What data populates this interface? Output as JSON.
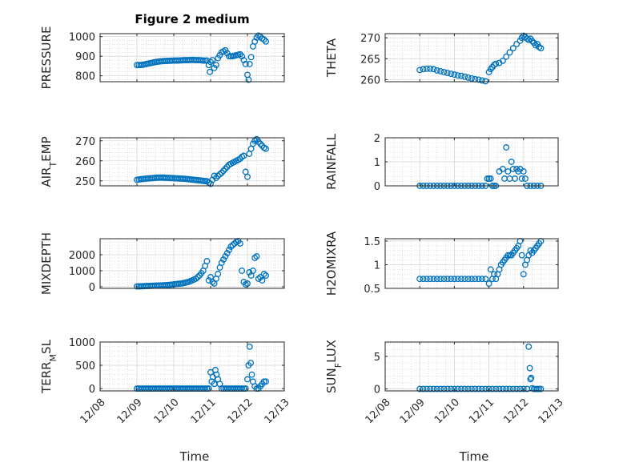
{
  "figure": {
    "title": "Figure 2 medium"
  },
  "colors": {
    "marker": "#0072bd",
    "axis": "#262626",
    "grid": "#d9d9d9",
    "grid_minor": "#c8c8c8"
  },
  "chart_data": [
    {
      "type": "scatter",
      "ylabel": "PRESSURE",
      "xlabel": "",
      "ylim": [
        770,
        1015
      ],
      "yticks": [
        "800",
        "900",
        "1000"
      ],
      "ytick_values": [
        800,
        900,
        1000
      ],
      "xlim": [
        0,
        5
      ],
      "grid": true,
      "marker": "circle",
      "x": [
        1.0,
        1.1,
        1.2,
        1.3,
        1.4,
        1.5,
        1.6,
        1.7,
        1.8,
        1.9,
        2.0,
        2.1,
        2.2,
        2.3,
        2.4,
        2.5,
        2.6,
        2.7,
        2.8,
        2.9,
        2.95,
        2.98,
        3.0,
        3.05,
        3.1,
        3.15,
        3.2,
        3.3,
        3.4,
        3.5,
        3.6,
        3.7,
        3.8,
        3.85,
        3.9,
        3.95,
        4.0,
        4.03,
        4.06,
        4.1,
        4.15,
        4.2,
        4.25,
        4.3,
        4.35,
        4.4,
        4.45,
        4.5
      ],
      "y": [
        855,
        855,
        858,
        862,
        866,
        870,
        873,
        875,
        876,
        877,
        878,
        878,
        879,
        880,
        880,
        881,
        880,
        880,
        878,
        878,
        855,
        820,
        870,
        880,
        840,
        855,
        890,
        920,
        930,
        900,
        900,
        905,
        910,
        900,
        880,
        860,
        805,
        780,
        860,
        895,
        950,
        975,
        995,
        1005,
        1000,
        990,
        985,
        975
      ]
    },
    {
      "type": "scatter",
      "ylabel": "THETA",
      "xlabel": "",
      "ylim": [
        259.5,
        271
      ],
      "yticks": [
        "260",
        "265",
        "270"
      ],
      "ytick_values": [
        260,
        265,
        270
      ],
      "xlim": [
        0,
        5
      ],
      "grid": true,
      "marker": "circle",
      "x": [
        1.0,
        1.1,
        1.2,
        1.3,
        1.4,
        1.5,
        1.6,
        1.7,
        1.8,
        1.9,
        2.0,
        2.1,
        2.2,
        2.3,
        2.4,
        2.5,
        2.6,
        2.7,
        2.8,
        2.9,
        3.0,
        3.05,
        3.1,
        3.15,
        3.2,
        3.3,
        3.4,
        3.5,
        3.6,
        3.7,
        3.8,
        3.9,
        3.95,
        4.0,
        4.05,
        4.1,
        4.15,
        4.2,
        4.25,
        4.3,
        4.35,
        4.4,
        4.45,
        4.5
      ],
      "y": [
        262.3,
        262.5,
        262.6,
        262.6,
        262.5,
        262.2,
        262.0,
        261.8,
        261.6,
        261.4,
        261.2,
        261.0,
        260.9,
        260.7,
        260.5,
        260.3,
        260.1,
        260.0,
        259.8,
        259.6,
        261.8,
        262.5,
        263.0,
        263.5,
        263.8,
        264.0,
        264.5,
        265.5,
        266.5,
        267.5,
        268.5,
        269.3,
        270.0,
        270.5,
        270.2,
        269.8,
        269.5,
        269.8,
        269.2,
        268.8,
        268.2,
        268.5,
        267.8,
        267.5
      ]
    },
    {
      "type": "scatter",
      "ylabel": "AIR_TEMP",
      "xlabel": "",
      "ylim": [
        247.5,
        271.5
      ],
      "yticks": [
        "250",
        "260",
        "270"
      ],
      "ytick_values": [
        250,
        260,
        270
      ],
      "xlim": [
        0,
        5
      ],
      "grid": true,
      "marker": "circle",
      "x": [
        1.0,
        1.1,
        1.2,
        1.3,
        1.4,
        1.5,
        1.6,
        1.7,
        1.8,
        1.9,
        2.0,
        2.1,
        2.2,
        2.3,
        2.4,
        2.5,
        2.6,
        2.7,
        2.8,
        2.9,
        3.0,
        3.05,
        3.1,
        3.15,
        3.2,
        3.3,
        3.4,
        3.5,
        3.6,
        3.7,
        3.8,
        3.85,
        3.9,
        3.95,
        4.0,
        4.05,
        4.1,
        4.15,
        4.2,
        4.25,
        4.3,
        4.35,
        4.4,
        4.45,
        4.5
      ],
      "y": [
        250.5,
        250.8,
        251.0,
        251.2,
        251.3,
        251.5,
        251.6,
        251.6,
        251.5,
        251.4,
        251.3,
        251.2,
        251.1,
        251.0,
        250.8,
        250.6,
        250.4,
        250.2,
        250.0,
        249.8,
        248.5,
        250.5,
        252.5,
        251.5,
        252.5,
        254.0,
        256.0,
        258.0,
        259.0,
        260.0,
        261.0,
        262.0,
        262.5,
        254.5,
        252.0,
        263.5,
        266.0,
        268.5,
        270.0,
        270.8,
        269.5,
        268.5,
        267.5,
        266.5,
        266.0
      ]
    },
    {
      "type": "scatter",
      "ylabel": "RAINFALL",
      "xlabel": "",
      "ylim": [
        0,
        2
      ],
      "yticks": [
        "0",
        "1",
        "2"
      ],
      "ytick_values": [
        0,
        1,
        2
      ],
      "xlim": [
        0,
        5
      ],
      "grid": true,
      "marker": "circle",
      "x": [
        1.0,
        1.1,
        1.2,
        1.3,
        1.4,
        1.5,
        1.6,
        1.7,
        1.8,
        1.9,
        2.0,
        2.1,
        2.2,
        2.3,
        2.4,
        2.5,
        2.6,
        2.7,
        2.8,
        2.9,
        2.95,
        3.0,
        3.05,
        3.1,
        3.15,
        3.2,
        3.3,
        3.4,
        3.45,
        3.5,
        3.55,
        3.6,
        3.65,
        3.7,
        3.75,
        3.8,
        3.85,
        3.9,
        3.95,
        4.0,
        4.05,
        4.1,
        4.2,
        4.3,
        4.4,
        4.5
      ],
      "y": [
        0,
        0,
        0,
        0,
        0,
        0,
        0,
        0,
        0,
        0,
        0,
        0,
        0,
        0,
        0,
        0,
        0,
        0,
        0,
        0,
        0.3,
        0.3,
        0.3,
        0,
        0,
        0,
        0.6,
        0.7,
        0.3,
        1.6,
        0.6,
        0.3,
        1.0,
        0.7,
        0.3,
        0.7,
        0.6,
        0.7,
        0.3,
        0.6,
        0.3,
        0,
        0,
        0,
        0,
        0
      ]
    },
    {
      "type": "scatter",
      "ylabel": "MIXDEPTH",
      "xlabel": "",
      "ylim": [
        -100,
        3000
      ],
      "yticks": [
        "0",
        "1000",
        "2000"
      ],
      "ytick_values": [
        0,
        1000,
        2000
      ],
      "xlim": [
        0,
        5
      ],
      "grid": true,
      "marker": "circle",
      "x": [
        1.0,
        1.1,
        1.2,
        1.3,
        1.4,
        1.5,
        1.6,
        1.7,
        1.8,
        1.9,
        2.0,
        2.1,
        2.2,
        2.3,
        2.4,
        2.5,
        2.6,
        2.7,
        2.8,
        2.85,
        2.9,
        2.95,
        3.0,
        3.05,
        3.1,
        3.15,
        3.2,
        3.25,
        3.3,
        3.35,
        3.4,
        3.45,
        3.5,
        3.55,
        3.6,
        3.65,
        3.7,
        3.75,
        3.8,
        3.85,
        3.9,
        3.95,
        4.0,
        4.05,
        4.1,
        4.15,
        4.2,
        4.25,
        4.3,
        4.35,
        4.4,
        4.45,
        4.5
      ],
      "y": [
        20,
        30,
        40,
        50,
        60,
        70,
        80,
        90,
        100,
        120,
        150,
        180,
        200,
        250,
        300,
        400,
        500,
        700,
        1000,
        1300,
        1600,
        400,
        600,
        300,
        200,
        500,
        800,
        1200,
        1500,
        1700,
        1900,
        2100,
        2300,
        2500,
        2600,
        2700,
        2800,
        2850,
        2700,
        1000,
        300,
        150,
        200,
        900,
        700,
        1000,
        1800,
        1900,
        500,
        600,
        400,
        800,
        700
      ]
    },
    {
      "type": "scatter",
      "ylabel": "H2OMIXRA",
      "xlabel": "",
      "ylim": [
        0.5,
        1.55
      ],
      "yticks": [
        "0.5",
        "1",
        "1.5"
      ],
      "ytick_values": [
        0.5,
        1,
        1.5
      ],
      "xlim": [
        0,
        5
      ],
      "grid": true,
      "marker": "circle",
      "x": [
        1.0,
        1.1,
        1.2,
        1.3,
        1.4,
        1.5,
        1.6,
        1.7,
        1.8,
        1.9,
        2.0,
        2.1,
        2.2,
        2.3,
        2.4,
        2.5,
        2.6,
        2.7,
        2.8,
        2.9,
        3.0,
        3.05,
        3.1,
        3.15,
        3.2,
        3.25,
        3.3,
        3.35,
        3.4,
        3.45,
        3.5,
        3.55,
        3.6,
        3.65,
        3.7,
        3.75,
        3.8,
        3.85,
        3.9,
        3.95,
        4.0,
        4.05,
        4.1,
        4.15,
        4.2,
        4.25,
        4.3,
        4.35,
        4.4,
        4.45,
        4.5
      ],
      "y": [
        0.7,
        0.7,
        0.7,
        0.7,
        0.7,
        0.7,
        0.7,
        0.7,
        0.7,
        0.7,
        0.7,
        0.7,
        0.7,
        0.7,
        0.7,
        0.7,
        0.7,
        0.7,
        0.7,
        0.7,
        0.6,
        0.9,
        0.7,
        0.8,
        0.7,
        0.8,
        0.9,
        1.0,
        1.05,
        1.1,
        1.15,
        1.2,
        1.2,
        1.2,
        1.25,
        1.3,
        1.35,
        1.4,
        1.5,
        1.2,
        0.8,
        1.0,
        1.1,
        1.2,
        1.3,
        1.25,
        1.3,
        1.35,
        1.4,
        1.45,
        1.5
      ]
    },
    {
      "type": "scatter",
      "ylabel": "TERR_MSL",
      "xlabel": "Time",
      "ylim": [
        -50,
        1000
      ],
      "yticks": [
        "0",
        "500",
        "1000"
      ],
      "ytick_values": [
        0,
        500,
        1000
      ],
      "xticks": [
        "12/08",
        "12/09",
        "12/10",
        "12/11",
        "12/12",
        "12/13"
      ],
      "xtick_values": [
        0,
        1,
        2,
        3,
        4,
        5
      ],
      "xlim": [
        0,
        5
      ],
      "grid": true,
      "marker": "circle",
      "x": [
        1.0,
        1.1,
        1.2,
        1.3,
        1.4,
        1.5,
        1.6,
        1.7,
        1.8,
        1.9,
        2.0,
        2.1,
        2.2,
        2.3,
        2.4,
        2.5,
        2.6,
        2.7,
        2.8,
        2.9,
        2.95,
        3.0,
        3.03,
        3.06,
        3.1,
        3.13,
        3.16,
        3.2,
        3.25,
        3.3,
        3.4,
        3.5,
        3.6,
        3.7,
        3.8,
        3.9,
        3.95,
        4.0,
        4.03,
        4.06,
        4.09,
        4.12,
        4.15,
        4.2,
        4.25,
        4.3,
        4.35,
        4.4,
        4.45,
        4.5
      ],
      "y": [
        0,
        0,
        0,
        0,
        0,
        0,
        0,
        0,
        0,
        0,
        0,
        0,
        0,
        0,
        0,
        0,
        0,
        0,
        0,
        0,
        0,
        350,
        150,
        250,
        100,
        400,
        300,
        200,
        100,
        0,
        0,
        0,
        0,
        0,
        0,
        0,
        0,
        200,
        500,
        900,
        550,
        300,
        150,
        50,
        0,
        0,
        50,
        100,
        150,
        150
      ]
    },
    {
      "type": "scatter",
      "ylabel": "SUN_FLUX",
      "xlabel": "Time",
      "ylim": [
        -0.3,
        7.2
      ],
      "yticks": [
        "0",
        "5"
      ],
      "ytick_values": [
        0,
        5
      ],
      "xticks": [
        "12/08",
        "12/09",
        "12/10",
        "12/11",
        "12/12",
        "12/13"
      ],
      "xtick_values": [
        0,
        1,
        2,
        3,
        4,
        5
      ],
      "xlim": [
        0,
        5
      ],
      "grid": true,
      "marker": "circle",
      "x": [
        1.0,
        1.1,
        1.2,
        1.3,
        1.4,
        1.5,
        1.6,
        1.7,
        1.8,
        1.9,
        2.0,
        2.1,
        2.2,
        2.3,
        2.4,
        2.5,
        2.6,
        2.7,
        2.8,
        2.9,
        3.0,
        3.1,
        3.2,
        3.3,
        3.4,
        3.5,
        3.6,
        3.7,
        3.8,
        3.9,
        4.0,
        4.1,
        4.15,
        4.18,
        4.2,
        4.22,
        4.25,
        4.3,
        4.35,
        4.4,
        4.45,
        4.5
      ],
      "y": [
        0,
        0,
        0,
        0,
        0,
        0,
        0,
        0,
        0,
        0,
        0,
        0,
        0,
        0,
        0,
        0,
        0,
        0,
        0,
        0,
        0,
        0,
        0,
        0,
        0,
        0,
        0,
        0,
        0,
        0,
        0,
        0,
        6.5,
        3.2,
        1.5,
        1.7,
        0.1,
        0,
        0,
        0,
        0,
        0
      ]
    }
  ]
}
